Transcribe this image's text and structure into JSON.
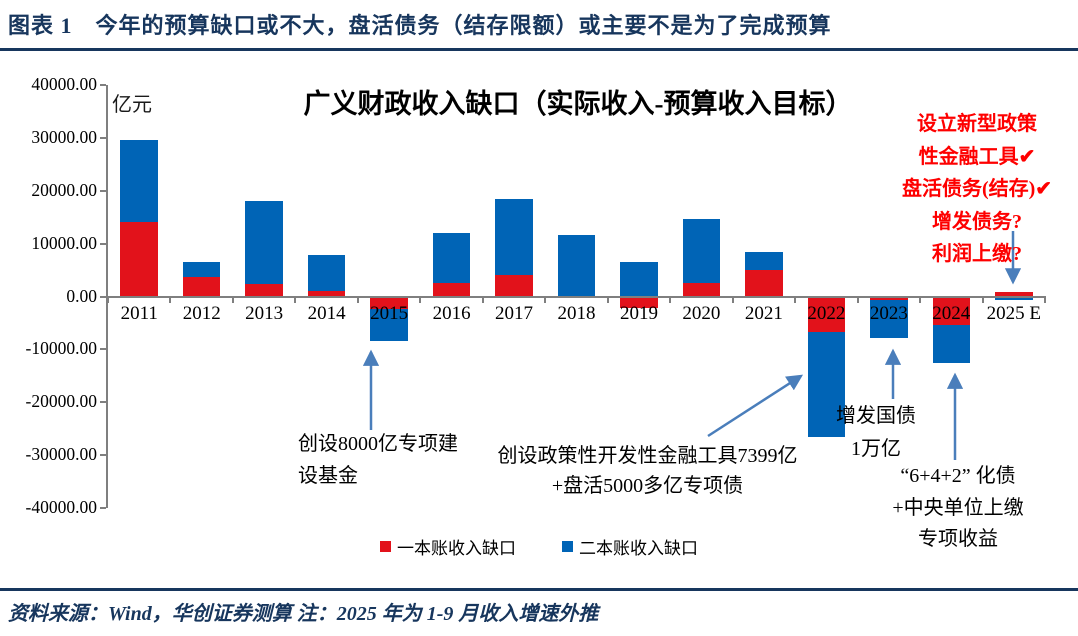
{
  "header": {
    "title": "图表 1　今年的预算缺口或不大，盘活债务（结存限额）或主要不是为了完成预算"
  },
  "chart_data": {
    "type": "bar",
    "stacked": true,
    "title": "广义财政收入缺口（实际收入-预算收入目标）",
    "unit_label": "亿元",
    "categories": [
      "2011",
      "2012",
      "2013",
      "2014",
      "2015",
      "2016",
      "2017",
      "2018",
      "2019",
      "2020",
      "2021",
      "2022",
      "2023",
      "2024",
      "2025 E"
    ],
    "series": [
      {
        "name": "一本账收入缺口",
        "color": "#e2121b",
        "values": [
          14100,
          3700,
          2400,
          1000,
          -2300,
          2500,
          4000,
          0,
          -2200,
          2600,
          5000,
          -6700,
          -700,
          -5400,
          900
        ]
      },
      {
        "name": "二本账收入缺口",
        "color": "#0064b6",
        "values": [
          15500,
          2800,
          15700,
          6800,
          -6200,
          9500,
          14400,
          11600,
          6500,
          12100,
          3400,
          -19900,
          -7100,
          -7200,
          -700
        ]
      }
    ],
    "ylim": [
      -40000,
      40000
    ],
    "ytick_step": 10000,
    "ytick_labels": [
      "40000.00",
      "30000.00",
      "20000.00",
      "10000.00",
      "0.00",
      "-10000.00",
      "-20000.00",
      "-30000.00",
      "-40000.00"
    ],
    "grid": "off",
    "legend_position": "bottom"
  },
  "annotations": {
    "anno_2015": {
      "lines": [
        "创设8000亿专项建",
        "设基金"
      ]
    },
    "anno_2022": {
      "lines": [
        "创设政策性开发性金融工具7399亿",
        "+盘活5000多亿专项债"
      ]
    },
    "anno_2023": {
      "lines": [
        "增发国债",
        "1万亿"
      ]
    },
    "anno_2024": {
      "lines": [
        "“6+4+2” 化债",
        "+中央单位上缴",
        "专项收益"
      ]
    },
    "policy_red": {
      "color": "#fe0000",
      "lines": [
        "设立新型政策",
        "性金融工具✔",
        "盘活债务(结存)✔",
        "增发债务?",
        "利润上缴?"
      ]
    }
  },
  "footer": {
    "source": "资料来源：Wind，华创证券测算 注：2025 年为 1-9 月收入增速外推"
  },
  "colors": {
    "navy": "#17365d",
    "axis_gray": "#7f7f7f",
    "arrow_blue": "#4a7ebb"
  }
}
